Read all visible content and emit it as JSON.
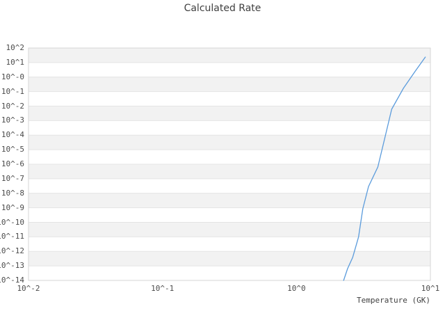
{
  "chart_data": {
    "type": "line",
    "title": "Calculated Rate",
    "xlabel": "Temperature (GK)",
    "ylabel": "",
    "x_scale": "log",
    "y_scale": "log",
    "xlim": [
      0.01,
      10
    ],
    "ylim": [
      1e-14,
      100
    ],
    "x_tick_labels": [
      "10^-2",
      "10^-1",
      "10^0",
      "10^1"
    ],
    "y_tick_labels": [
      "10^2",
      "10^1",
      "10^-0",
      "10^-1",
      "10^-2",
      "10^-3",
      "10^-4",
      "10^-5",
      "10^-6",
      "10^-7",
      "10^-8",
      "10^-9",
      "10^-10",
      "10^-11",
      "10^-12",
      "10^-13",
      "10^-14"
    ],
    "grid": "horizontal-decade-bands",
    "legend": "none",
    "colors": {
      "line": "#5a9bdc",
      "band": "#f2f2f2",
      "gridline": "#e4e4e4",
      "border": "#d6d6d6"
    },
    "series": [
      {
        "name": "calculated-rate",
        "points": [
          [
            2.25,
            1e-14
          ],
          [
            2.41,
            6.5e-14
          ],
          [
            2.63,
            3.8e-13
          ],
          [
            2.91,
            1e-11
          ],
          [
            3.13,
            8.6e-10
          ],
          [
            3.45,
            2.9e-08
          ],
          [
            4.05,
            6.4e-07
          ],
          [
            4.6,
            8.2e-05
          ],
          [
            5.14,
            0.0061
          ],
          [
            6.28,
            0.167
          ],
          [
            7.66,
            2.35
          ],
          [
            9.16,
            23.8
          ]
        ]
      }
    ]
  }
}
